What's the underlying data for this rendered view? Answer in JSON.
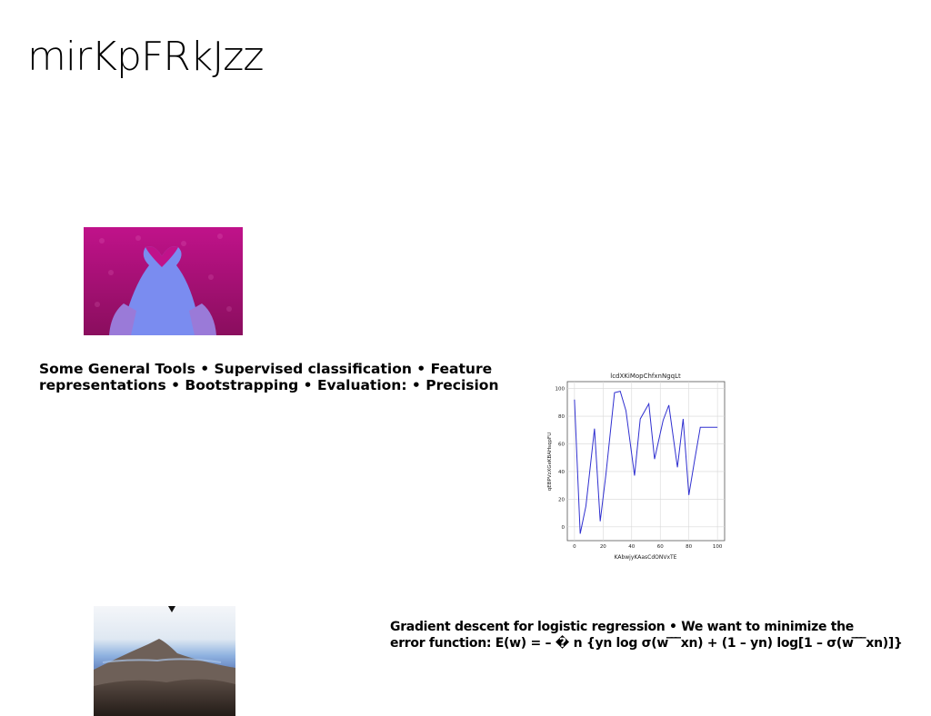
{
  "page": {
    "title": "mirKpFRkJzz"
  },
  "images": {
    "heart": {
      "icon": "heart-hands-photo",
      "bg": "#b0127f"
    },
    "mountain": {
      "icon": "mountain-landscape-photo"
    }
  },
  "text_blocks": {
    "tools_line1": "Some General Tools • Supervised classification • Feature",
    "tools_line2": "representations • Bootstrapping • Evaluation: • Precision",
    "gradient_line1": "Gradient descent for logistic regression • We want to minimize the",
    "gradient_line2": "error function: E(w) = – � n {yn log σ(w ̅ ̅ ̅xn) + (1 – yn) log[1 – σ(w ̅ ̅ ̅xn)]}"
  },
  "chart_data": {
    "type": "line",
    "title": "lcdXKiMopChfxnNgqLt",
    "xlabel": "KAbwjyKAasCdONVxTE",
    "ylabel": "qEBPVzXGeKBAHsqpFU",
    "x": [
      0,
      4,
      8,
      14,
      18,
      22,
      28,
      32,
      36,
      42,
      46,
      52,
      56,
      62,
      66,
      72,
      76,
      80,
      84,
      88,
      92,
      96,
      100
    ],
    "series": [
      {
        "values": [
          92,
          -5,
          15,
          71,
          4,
          38,
          97,
          98,
          84,
          37,
          78,
          89,
          49,
          77,
          88,
          43,
          78,
          23,
          48,
          72,
          72,
          72,
          72
        ]
      }
    ],
    "xlim": [
      -5,
      105
    ],
    "ylim": [
      -10,
      105
    ],
    "xticks": [
      "0",
      "20",
      "40",
      "60",
      "80",
      "100"
    ],
    "yticks": [
      "0",
      "20",
      "40",
      "60",
      "80",
      "100"
    ],
    "grid": true,
    "line_color": "#3030d0"
  },
  "marker": {
    "icon": "triangle-down-icon"
  }
}
